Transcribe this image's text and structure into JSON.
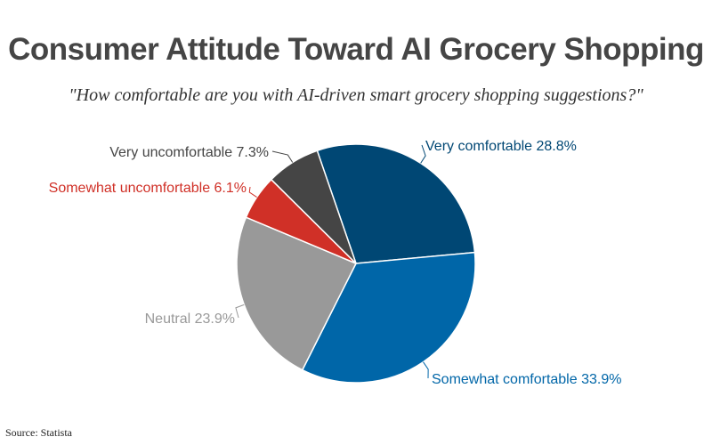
{
  "chart_data": {
    "type": "pie",
    "title": "Consumer Attitude Toward AI Grocery Shopping",
    "subtitle": "\"How comfortable are you with AI-driven smart grocery shopping suggestions?\"",
    "slices": [
      {
        "label": "Very comfortable 28.8%",
        "name": "Very comfortable",
        "value": 28.8,
        "color": "#004774"
      },
      {
        "label": "Somewhat comfortable 33.9%",
        "name": "Somewhat comfortable",
        "value": 33.9,
        "color": "#0066a8"
      },
      {
        "label": "Neutral 23.9%",
        "name": "Neutral",
        "value": 23.9,
        "color": "#999999"
      },
      {
        "label": "Somewhat uncomfortable 6.1%",
        "name": "Somewhat uncomfortable",
        "value": 6.1,
        "color": "#d03027"
      },
      {
        "label": "Very uncomfortable 7.3%",
        "name": "Very uncomfortable",
        "value": 7.3,
        "color": "#454545"
      }
    ],
    "start_angle_deg": -19,
    "direction": "clockwise",
    "source": "Source: Statista"
  }
}
